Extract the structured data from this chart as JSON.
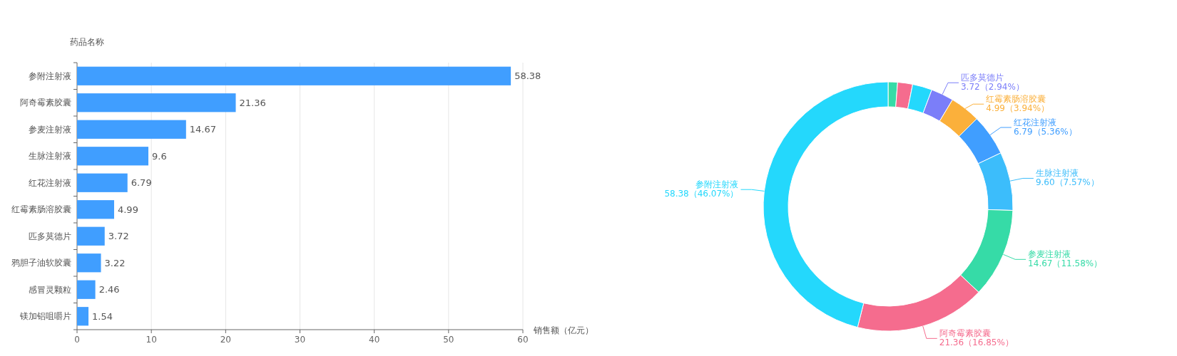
{
  "chart_data": [
    {
      "type": "bar",
      "orientation": "horizontal",
      "ylabel": "药品名称",
      "xlabel": "销售额（亿元）",
      "categories": [
        "参附注射液",
        "阿奇霉素胶囊",
        "参麦注射液",
        "生脉注射液",
        "红花注射液",
        "红霉素肠溶胶囊",
        "匹多莫德片",
        "鸦胆子油软胶囊",
        "感冒灵颗粒",
        "镁加铝咀嚼片"
      ],
      "values": [
        58.38,
        21.36,
        14.67,
        9.6,
        6.79,
        4.99,
        3.72,
        3.22,
        2.46,
        1.54
      ],
      "color": "#409eff",
      "xlim": [
        0,
        60
      ],
      "xticks": [
        0,
        10,
        20,
        30,
        40,
        50,
        60
      ],
      "grid": "x",
      "data_labels": true
    },
    {
      "type": "donut",
      "categories": [
        null,
        null,
        null,
        "匹多莫德片",
        "红霉素肠溶胶囊",
        "红花注射液",
        "生脉注射液",
        "参麦注射液",
        "阿奇霉素胶囊",
        "参附注射液"
      ],
      "values": [
        1.54,
        2.46,
        3.22,
        3.72,
        4.99,
        6.79,
        9.6,
        14.67,
        21.36,
        58.38
      ],
      "colors": [
        "#36dba7",
        "#f56c8e",
        "#24d8fc",
        "#7b7ef9",
        "#fbb03b",
        "#409eff",
        "#3cbdfb",
        "#36dba7",
        "#f56c8e",
        "#24d8fc"
      ],
      "value_labels": [
        null,
        null,
        null,
        "3.72（2.94%）",
        "4.99（3.94%）",
        "6.79（5.36%）",
        "9.60（7.57%）",
        "14.67（11.58%）",
        "21.36（16.85%）",
        "58.38（46.07%）"
      ]
    }
  ]
}
